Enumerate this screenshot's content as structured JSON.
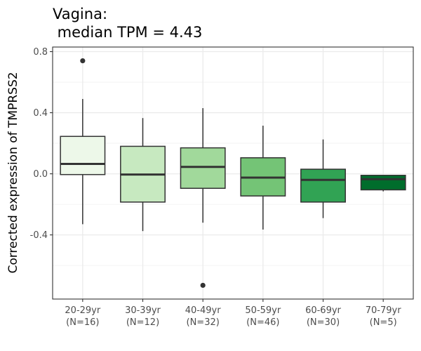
{
  "chart_data": {
    "type": "boxplot",
    "title_lines": [
      "Vagina:",
      " median TPM = 4.43"
    ],
    "ylabel": "Corrected expression of TMPRSS2",
    "xlabel": "",
    "ylim": [
      -0.82,
      0.83
    ],
    "yticks": [
      0.8,
      0.4,
      0.0,
      -0.4
    ],
    "ytick_labels": [
      "0.8",
      "0.4",
      "0.0",
      "-0.4"
    ],
    "grid": true,
    "categories": [
      {
        "label": "20-29yr",
        "n": "(N=16)",
        "fill": "#edf8e9",
        "min": -0.33,
        "q1": -0.005,
        "median": 0.065,
        "q3": 0.245,
        "max": 0.49,
        "outliers": [
          0.74
        ]
      },
      {
        "label": "30-39yr",
        "n": "(N=12)",
        "fill": "#c7e9c0",
        "min": -0.375,
        "q1": -0.185,
        "median": -0.005,
        "q3": 0.18,
        "max": 0.365,
        "outliers": []
      },
      {
        "label": "40-49yr",
        "n": "(N=32)",
        "fill": "#a1d99b",
        "min": -0.32,
        "q1": -0.095,
        "median": 0.045,
        "q3": 0.17,
        "max": 0.43,
        "outliers": [
          -0.73
        ]
      },
      {
        "label": "50-59yr",
        "n": "(N=46)",
        "fill": "#74c476",
        "min": -0.365,
        "q1": -0.145,
        "median": -0.025,
        "q3": 0.105,
        "max": 0.315,
        "outliers": []
      },
      {
        "label": "60-69yr",
        "n": "(N=30)",
        "fill": "#31a354",
        "min": -0.29,
        "q1": -0.185,
        "median": -0.04,
        "q3": 0.03,
        "max": 0.225,
        "outliers": []
      },
      {
        "label": "70-79yr",
        "n": "(N=5)",
        "fill": "#006d2c",
        "min": -0.115,
        "q1": -0.105,
        "median": -0.035,
        "q3": -0.01,
        "max": -0.01,
        "outliers": []
      }
    ]
  }
}
